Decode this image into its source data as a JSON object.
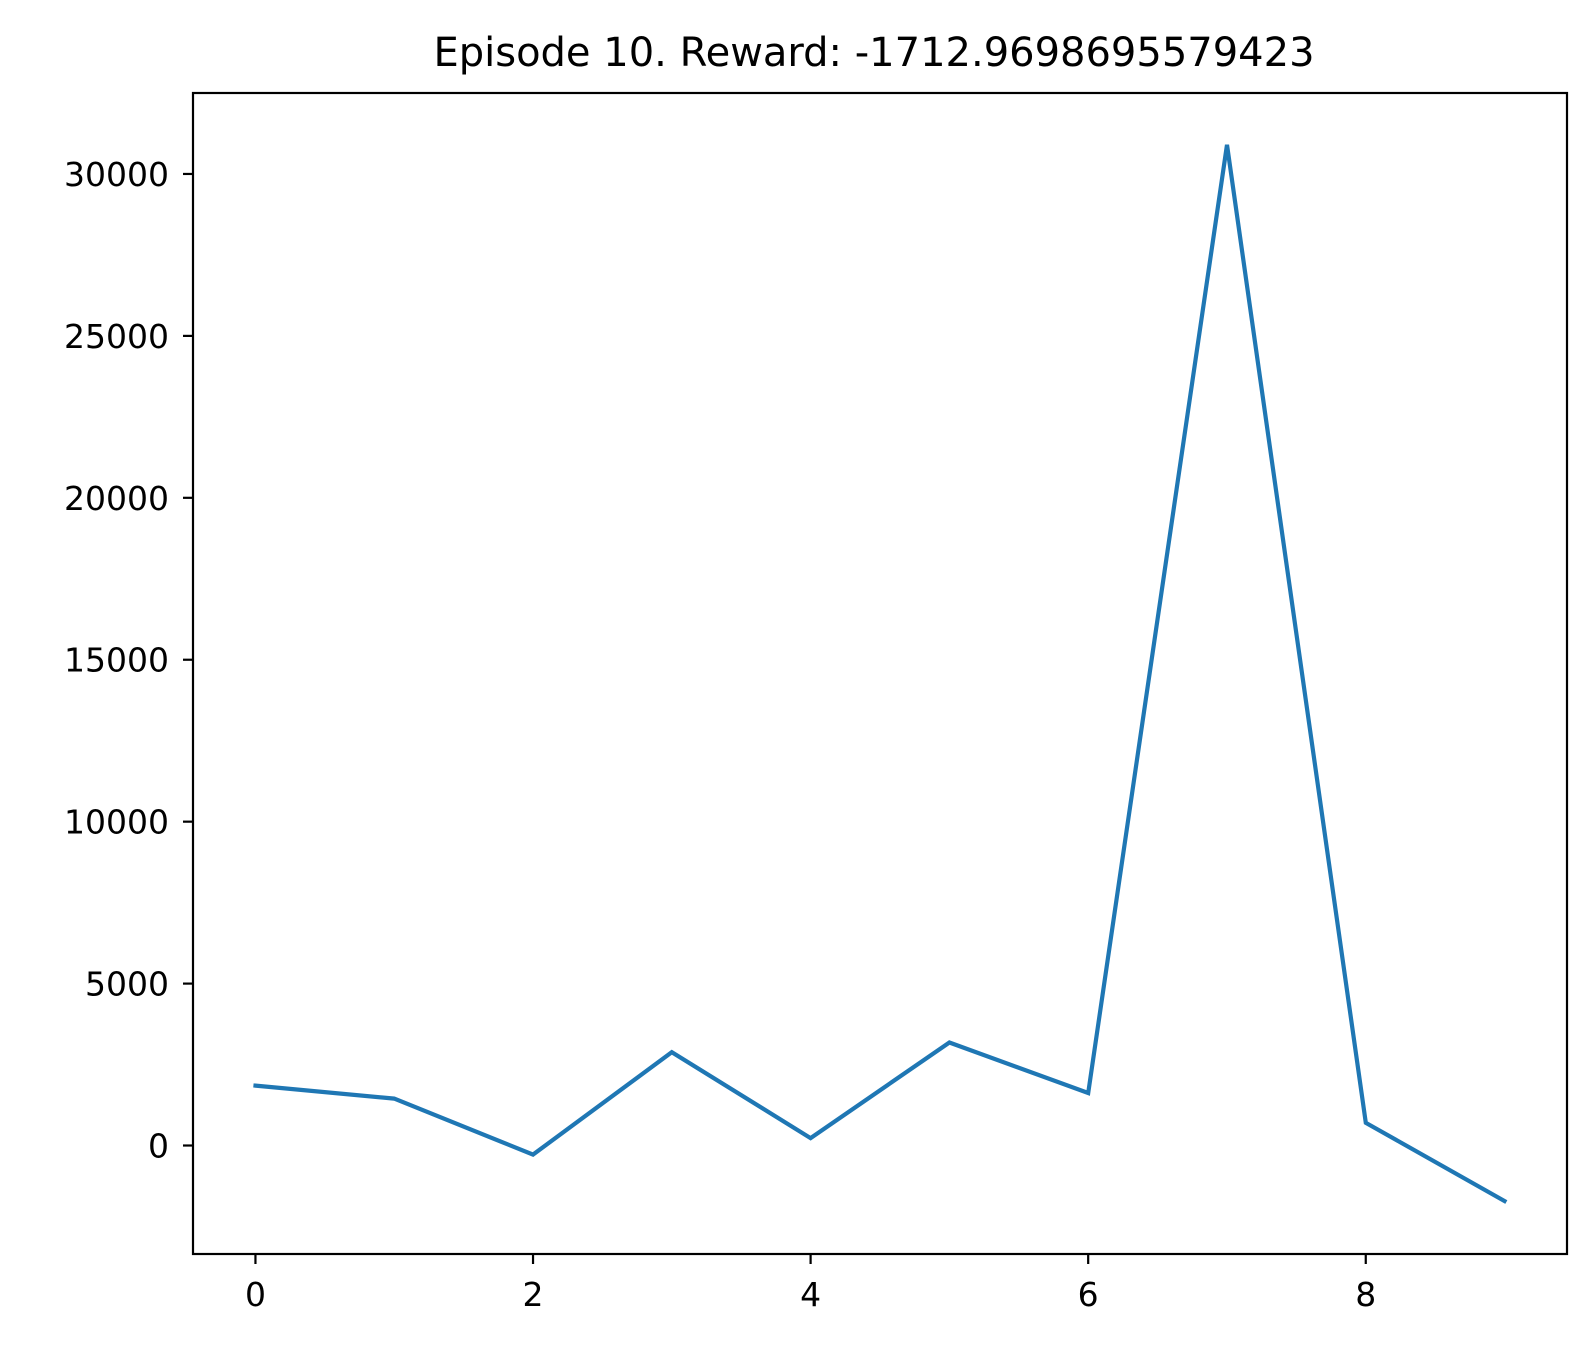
{
  "chart_data": {
    "type": "line",
    "title": "Episode 10. Reward: -1712.9698695579423",
    "xlabel": "",
    "ylabel": "",
    "x": [
      0,
      1,
      2,
      3,
      4,
      5,
      6,
      7,
      8,
      9
    ],
    "series": [
      {
        "values": [
          1850,
          1450,
          -280,
          2880,
          230,
          3180,
          1620,
          30900,
          700,
          -1713
        ],
        "color": "#1f77b4"
      }
    ],
    "xlim": [
      -0.45,
      9.45
    ],
    "ylim": [
      -3350,
      32500
    ],
    "xticks": [
      0,
      2,
      4,
      6,
      8
    ],
    "xtick_labels": [
      "0",
      "2",
      "4",
      "6",
      "8"
    ],
    "yticks": [
      0,
      5000,
      10000,
      15000,
      20000,
      25000,
      30000
    ],
    "ytick_labels": [
      "0",
      "5000",
      "10000",
      "15000",
      "20000",
      "25000",
      "30000"
    ],
    "grid": false,
    "legend": "none"
  }
}
